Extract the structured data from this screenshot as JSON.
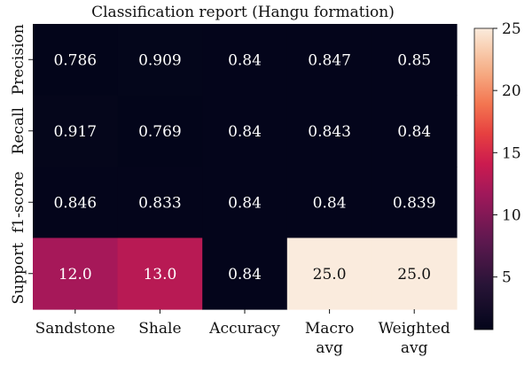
{
  "chart_data": {
    "type": "heatmap",
    "title": "Classification report (Hangu formation)",
    "x_categories": [
      "Sandstone",
      "Shale",
      "Accuracy",
      [
        "Macro",
        "avg"
      ],
      [
        "Weighted",
        "avg"
      ]
    ],
    "y_categories": [
      "Precision",
      "Recall",
      "f1-score",
      "Support"
    ],
    "values": [
      [
        0.786,
        0.909,
        0.84,
        0.847,
        0.85
      ],
      [
        0.917,
        0.769,
        0.84,
        0.843,
        0.84
      ],
      [
        0.846,
        0.833,
        0.84,
        0.84,
        0.839
      ],
      [
        12.0,
        13.0,
        0.84,
        25.0,
        25.0
      ]
    ],
    "cell_labels": [
      [
        "0.786",
        "0.909",
        "0.84",
        "0.847",
        "0.85"
      ],
      [
        "0.917",
        "0.769",
        "0.84",
        "0.843",
        "0.84"
      ],
      [
        "0.846",
        "0.833",
        "0.84",
        "0.84",
        "0.839"
      ],
      [
        "12.0",
        "13.0",
        "0.84",
        "25.0",
        "25.0"
      ]
    ],
    "colorbar": {
      "colormap": "rocket",
      "min": 0.769,
      "max": 25.0,
      "ticks": [
        5,
        10,
        15,
        20,
        25
      ]
    }
  }
}
